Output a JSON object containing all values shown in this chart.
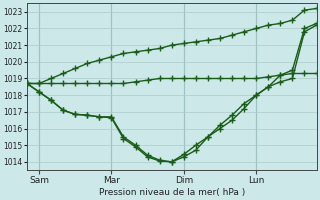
{
  "xlabel": "Pression niveau de la mer( hPa )",
  "ylim": [
    1013.5,
    1023.5
  ],
  "yticks": [
    1014,
    1015,
    1016,
    1017,
    1018,
    1019,
    1020,
    1021,
    1022,
    1023
  ],
  "bg_color": "#cce8e8",
  "line_color": "#1a5c1a",
  "grid_color": "#aacccc",
  "line_width": 1.0,
  "marker": "+",
  "marker_size": 4,
  "xlim": [
    0,
    96
  ],
  "xtick_positions": [
    4,
    28,
    52,
    76
  ],
  "xtick_labels": [
    "Sam",
    "Mar",
    "Dim",
    "Lun"
  ],
  "vline_color": "#88aaaa",
  "vlines_x": [
    4,
    28,
    52,
    76
  ],
  "series1_x": [
    0,
    4,
    8,
    12,
    16,
    20,
    24,
    28,
    32,
    36,
    40,
    44,
    48,
    52,
    56,
    60,
    64,
    68,
    72,
    76,
    80,
    84,
    88,
    92,
    96
  ],
  "series1_y": [
    1018.7,
    1018.7,
    1018.7,
    1018.7,
    1018.7,
    1018.7,
    1018.7,
    1018.7,
    1018.7,
    1018.8,
    1018.9,
    1019.0,
    1019.0,
    1019.0,
    1019.0,
    1019.0,
    1019.0,
    1019.0,
    1019.0,
    1019.0,
    1019.1,
    1019.2,
    1019.3,
    1019.3,
    1019.3
  ],
  "series2_x": [
    0,
    4,
    8,
    12,
    16,
    20,
    24,
    28,
    32,
    36,
    40,
    44,
    48,
    52,
    56,
    60,
    64,
    68,
    72,
    76,
    80,
    84,
    88,
    92,
    96
  ],
  "series2_y": [
    1018.7,
    1018.7,
    1019.0,
    1019.3,
    1019.6,
    1019.9,
    1020.1,
    1020.3,
    1020.5,
    1020.6,
    1020.7,
    1020.8,
    1021.0,
    1021.1,
    1021.2,
    1021.3,
    1021.4,
    1021.6,
    1021.8,
    1022.0,
    1022.2,
    1022.3,
    1022.5,
    1023.1,
    1023.2
  ],
  "series3_x": [
    0,
    4,
    8,
    12,
    16,
    20,
    24,
    28,
    32,
    36,
    40,
    44,
    48,
    52,
    56,
    60,
    64,
    68,
    72,
    76,
    80,
    84,
    88,
    92,
    96
  ],
  "series3_y": [
    1018.7,
    1018.2,
    1017.7,
    1017.1,
    1016.85,
    1016.8,
    1016.7,
    1016.7,
    1015.5,
    1015.0,
    1014.4,
    1014.1,
    1014.0,
    1014.3,
    1014.7,
    1015.5,
    1016.0,
    1016.5,
    1017.2,
    1018.0,
    1018.5,
    1018.8,
    1019.0,
    1021.8,
    1022.2
  ],
  "series4_x": [
    0,
    4,
    8,
    12,
    16,
    20,
    24,
    28,
    32,
    36,
    40,
    44,
    48,
    52,
    56,
    60,
    64,
    68,
    72,
    76,
    80,
    84,
    88,
    92,
    96
  ],
  "series4_y": [
    1018.7,
    1018.2,
    1017.7,
    1017.1,
    1016.85,
    1016.8,
    1016.7,
    1016.65,
    1015.4,
    1014.9,
    1014.3,
    1014.05,
    1014.0,
    1014.45,
    1015.0,
    1015.5,
    1016.2,
    1016.8,
    1017.5,
    1018.0,
    1018.5,
    1019.2,
    1019.5,
    1022.0,
    1022.3
  ]
}
